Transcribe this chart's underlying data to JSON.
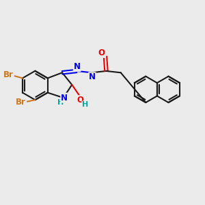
{
  "bg_color": "#ebebeb",
  "bond_color": "#1a1a1a",
  "bond_width": 1.5,
  "atom_colors": {
    "Br": "#cc7722",
    "N": "#0000ee",
    "O": "#ee0000",
    "H": "#00aaaa",
    "C": "#1a1a1a"
  },
  "font_size": 8.5
}
